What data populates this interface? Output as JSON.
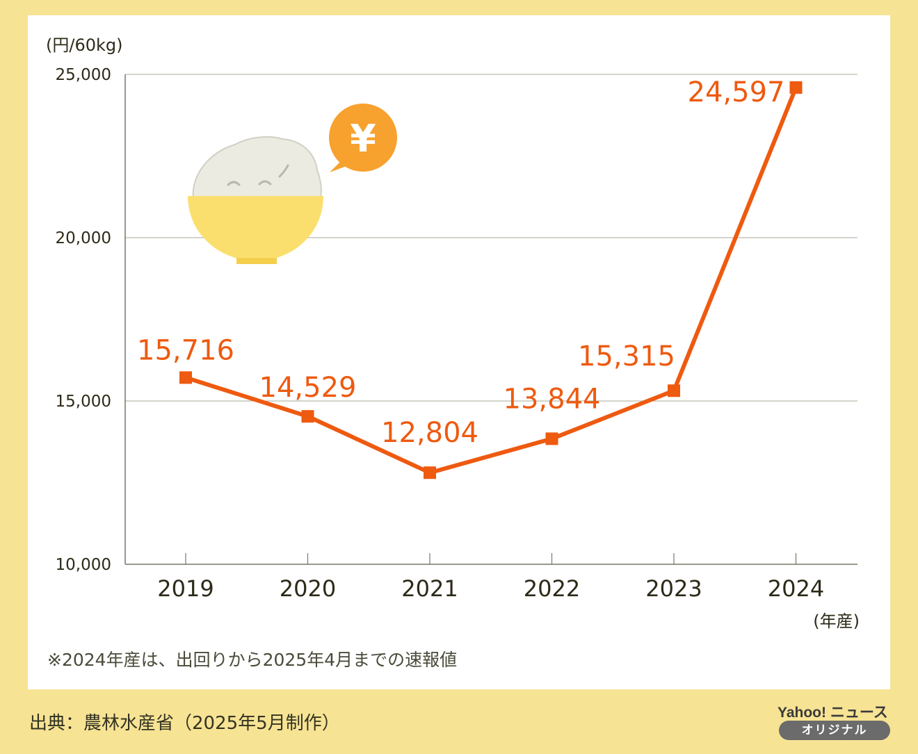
{
  "chart_data": {
    "type": "line",
    "categories": [
      "2019",
      "2020",
      "2021",
      "2022",
      "2023",
      "2024"
    ],
    "series": [
      {
        "values": [
          15716,
          14529,
          12804,
          13844,
          15315,
          24597
        ]
      }
    ],
    "data_labels": [
      "15,716",
      "14,529",
      "12,804",
      "13,844",
      "15,315",
      "24,597"
    ],
    "ylim": [
      10000,
      25000
    ],
    "yticks": [
      10000,
      15000,
      20000,
      25000
    ],
    "ytick_labels": [
      "10,000",
      "15,000",
      "20,000",
      "25,000"
    ],
    "ylabel": "(円/60kg)",
    "xlabel": "(年産)",
    "grid": true,
    "line_color": "#ee5a10",
    "marker": "square"
  },
  "footnote": "※2024年産は、出回りから2025年4月までの速報値",
  "source": "出典：農林水産省（2025年5月制作）",
  "logo": {
    "main": "Yahoo! ニュース",
    "sub": "オリジナル"
  },
  "illustration": {
    "icons": [
      "rice-bowl-icon",
      "yen-bubble-icon"
    ],
    "yen_symbol": "¥"
  },
  "colors": {
    "background": "#f7e394",
    "card": "#ffffff",
    "line": "#ee5a10",
    "bowl": "#fbdf6e",
    "yen_bubble": "#f7a12e"
  }
}
